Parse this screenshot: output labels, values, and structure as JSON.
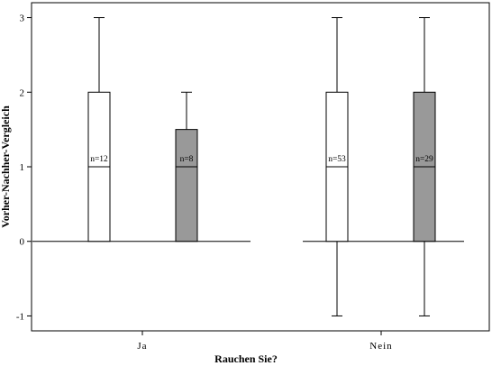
{
  "chart_data": {
    "type": "boxplot",
    "xlabel": "Rauchen Sie?",
    "ylabel": "Vorher-Nachher-Vergleich",
    "ylim": [
      -1.2,
      3.2
    ],
    "yticks": [
      -1,
      0,
      1,
      2,
      3
    ],
    "categories": [
      "Ja",
      "Nein"
    ],
    "grid": false,
    "boxes": [
      {
        "category": "Ja",
        "fill": "#ffffff",
        "label": "n=12",
        "min": 0,
        "q1": 0,
        "median": 1,
        "q3": 2,
        "max": 3
      },
      {
        "category": "Ja",
        "fill": "#999999",
        "label": "n=8",
        "min": 0,
        "q1": 0,
        "median": 1,
        "q3": 1.5,
        "max": 2
      },
      {
        "category": "Nein",
        "fill": "#ffffff",
        "label": "n=53",
        "min": -1,
        "q1": 0,
        "median": 1,
        "q3": 2,
        "max": 3
      },
      {
        "category": "Nein",
        "fill": "#999999",
        "label": "n=29",
        "min": -1,
        "q1": 0,
        "median": 1,
        "q3": 2,
        "max": 3
      }
    ]
  }
}
